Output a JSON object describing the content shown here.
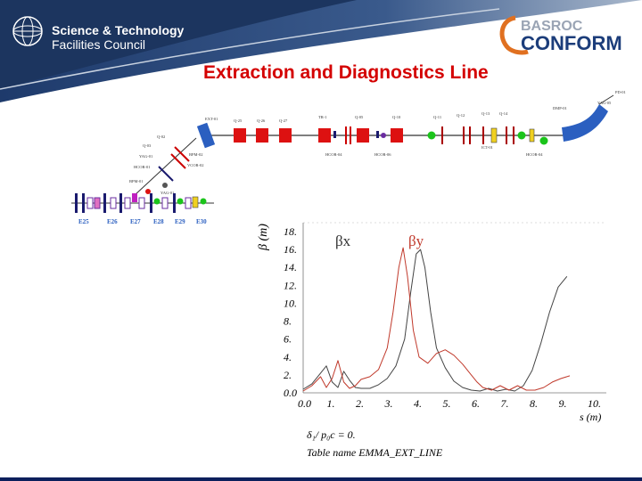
{
  "header": {
    "org_line1": "Science & Technology",
    "org_line2": "Facilities Council",
    "partner_top": "BASROC",
    "partner_bottom": "CONFORM"
  },
  "slide": {
    "title": "Extraction and Diagnostics Line"
  },
  "lattice": {
    "cell_labels": [
      "E25",
      "E26",
      "E27",
      "E28",
      "E29",
      "E30"
    ]
  },
  "chart_data": {
    "type": "line",
    "ylabel": "β (m)",
    "xlabel": "s (m)",
    "xlim": [
      0,
      10
    ],
    "ylim": [
      0,
      18
    ],
    "x_ticks": [
      "0.0",
      "1.",
      "2.",
      "3.",
      "4.",
      "5.",
      "6.",
      "7.",
      "8.",
      "9.",
      "10."
    ],
    "y_ticks": [
      "0.0",
      "2.",
      "4.",
      "6.",
      "8.",
      "10.",
      "12.",
      "14.",
      "16.",
      "18."
    ],
    "series": [
      {
        "name": "βx",
        "color": "#444444",
        "x": [
          0.0,
          0.3,
          0.6,
          0.8,
          1.0,
          1.2,
          1.4,
          1.6,
          1.8,
          2.0,
          2.3,
          2.6,
          2.9,
          3.2,
          3.5,
          3.7,
          3.9,
          4.05,
          4.2,
          4.4,
          4.6,
          4.9,
          5.2,
          5.5,
          5.8,
          6.1,
          6.4,
          6.7,
          7.0,
          7.3,
          7.6,
          7.9,
          8.2,
          8.5,
          8.8,
          9.1
        ],
        "y": [
          0.4,
          1.0,
          2.2,
          3.0,
          1.2,
          0.6,
          2.4,
          1.4,
          0.6,
          0.5,
          0.5,
          0.9,
          1.6,
          3.0,
          6.0,
          11.0,
          15.5,
          16.0,
          14.0,
          9.0,
          5.0,
          2.8,
          1.3,
          0.6,
          0.3,
          0.2,
          0.5,
          0.2,
          0.4,
          0.2,
          0.8,
          2.5,
          5.5,
          9.0,
          11.8,
          13.0
        ]
      },
      {
        "name": "βy",
        "color": "#c0392b",
        "x": [
          0.0,
          0.3,
          0.6,
          0.8,
          1.0,
          1.2,
          1.4,
          1.6,
          1.8,
          2.0,
          2.3,
          2.6,
          2.9,
          3.1,
          3.3,
          3.45,
          3.6,
          3.8,
          4.0,
          4.3,
          4.6,
          4.9,
          5.2,
          5.5,
          5.8,
          6.0,
          6.2,
          6.5,
          6.8,
          7.1,
          7.4,
          7.7,
          8.0,
          8.3,
          8.6,
          8.9,
          9.2
        ],
        "y": [
          0.2,
          0.8,
          1.8,
          0.6,
          1.6,
          3.6,
          1.2,
          0.5,
          0.8,
          1.5,
          1.8,
          2.6,
          5.0,
          9.0,
          14.0,
          16.2,
          13.0,
          7.0,
          4.0,
          3.3,
          4.4,
          4.8,
          4.2,
          3.2,
          2.0,
          1.2,
          0.6,
          0.3,
          0.8,
          0.3,
          0.8,
          0.3,
          0.3,
          0.6,
          1.2,
          1.6,
          1.9
        ]
      }
    ]
  },
  "plot_labels": {
    "params_line": "δ₁/ p₀c  =  0.",
    "table_line": "Table name    EMMA_EXT_LINE"
  }
}
